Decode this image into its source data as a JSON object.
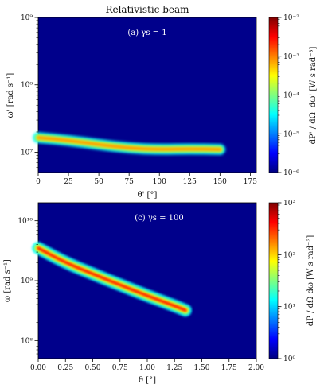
{
  "title": "Relativistic beam",
  "chart_data": [
    {
      "type": "heatmap",
      "panel_label": "(a) γs = 1",
      "xlabel": "θ' [°]",
      "ylabel": "ω' [rad s⁻¹]",
      "xlim": [
        0,
        180
      ],
      "ylim": [
        5000000,
        1000000000
      ],
      "yscale": "log",
      "xticks": [
        0,
        25,
        50,
        75,
        100,
        125,
        150,
        175
      ],
      "xtick_labels": [
        "0",
        "25",
        "50",
        "75",
        "100",
        "125",
        "150",
        "175"
      ],
      "yticks": [
        10000000,
        100000000,
        1000000000
      ],
      "ytick_labels": [
        "10⁷",
        "10⁸",
        "10⁹"
      ],
      "colorbar": {
        "label": "dP' / dΩ' dω' [W s rad⁻³]",
        "scale": "log",
        "range": [
          1e-06,
          0.01
        ],
        "ticks": [
          1e-06,
          1e-05,
          0.0001,
          0.001,
          0.01
        ],
        "tick_labels": [
          "10⁻⁶",
          "10⁻⁵",
          "10⁻⁴",
          "10⁻³",
          "10⁻²"
        ]
      },
      "band": {
        "x": [
          0,
          25,
          50,
          75,
          100,
          125,
          150
        ],
        "y": [
          16500000,
          15000000,
          13000000,
          11500000,
          11000000,
          11200000,
          11000000
        ]
      }
    },
    {
      "type": "heatmap",
      "panel_label": "(c) γs = 100",
      "xlabel": "θ [°]",
      "ylabel": "ω [rad s⁻¹]",
      "xlim": [
        0,
        2
      ],
      "ylim": [
        50000000,
        20000000000
      ],
      "yscale": "log",
      "xticks": [
        0,
        0.25,
        0.5,
        0.75,
        1,
        1.25,
        1.5,
        1.75,
        2
      ],
      "xtick_labels": [
        "0.00",
        "0.25",
        "0.50",
        "0.75",
        "1.00",
        "1.25",
        "1.50",
        "1.75",
        "2.00"
      ],
      "yticks": [
        100000000,
        1000000000,
        10000000000
      ],
      "ytick_labels": [
        "10⁸",
        "10⁹",
        "10¹⁰"
      ],
      "colorbar": {
        "label": "dP / dΩ dω [W s rad⁻³]",
        "scale": "log",
        "range": [
          1,
          1000
        ],
        "ticks": [
          1,
          10,
          100,
          1000
        ],
        "tick_labels": [
          "10⁰",
          "10¹",
          "10²",
          "10³"
        ]
      },
      "band": {
        "x": [
          0,
          0.25,
          0.5,
          0.75,
          1.0,
          1.25,
          1.35
        ],
        "y": [
          3500000000,
          2000000000,
          1300000000,
          850000000,
          560000000,
          380000000,
          320000000
        ]
      }
    }
  ],
  "colors": {
    "background": "#00008b",
    "cmap": [
      "#00007f",
      "#0000ff",
      "#007fff",
      "#00ffff",
      "#7fff7f",
      "#ffff00",
      "#ff7f00",
      "#ff0000",
      "#7f0000"
    ]
  }
}
